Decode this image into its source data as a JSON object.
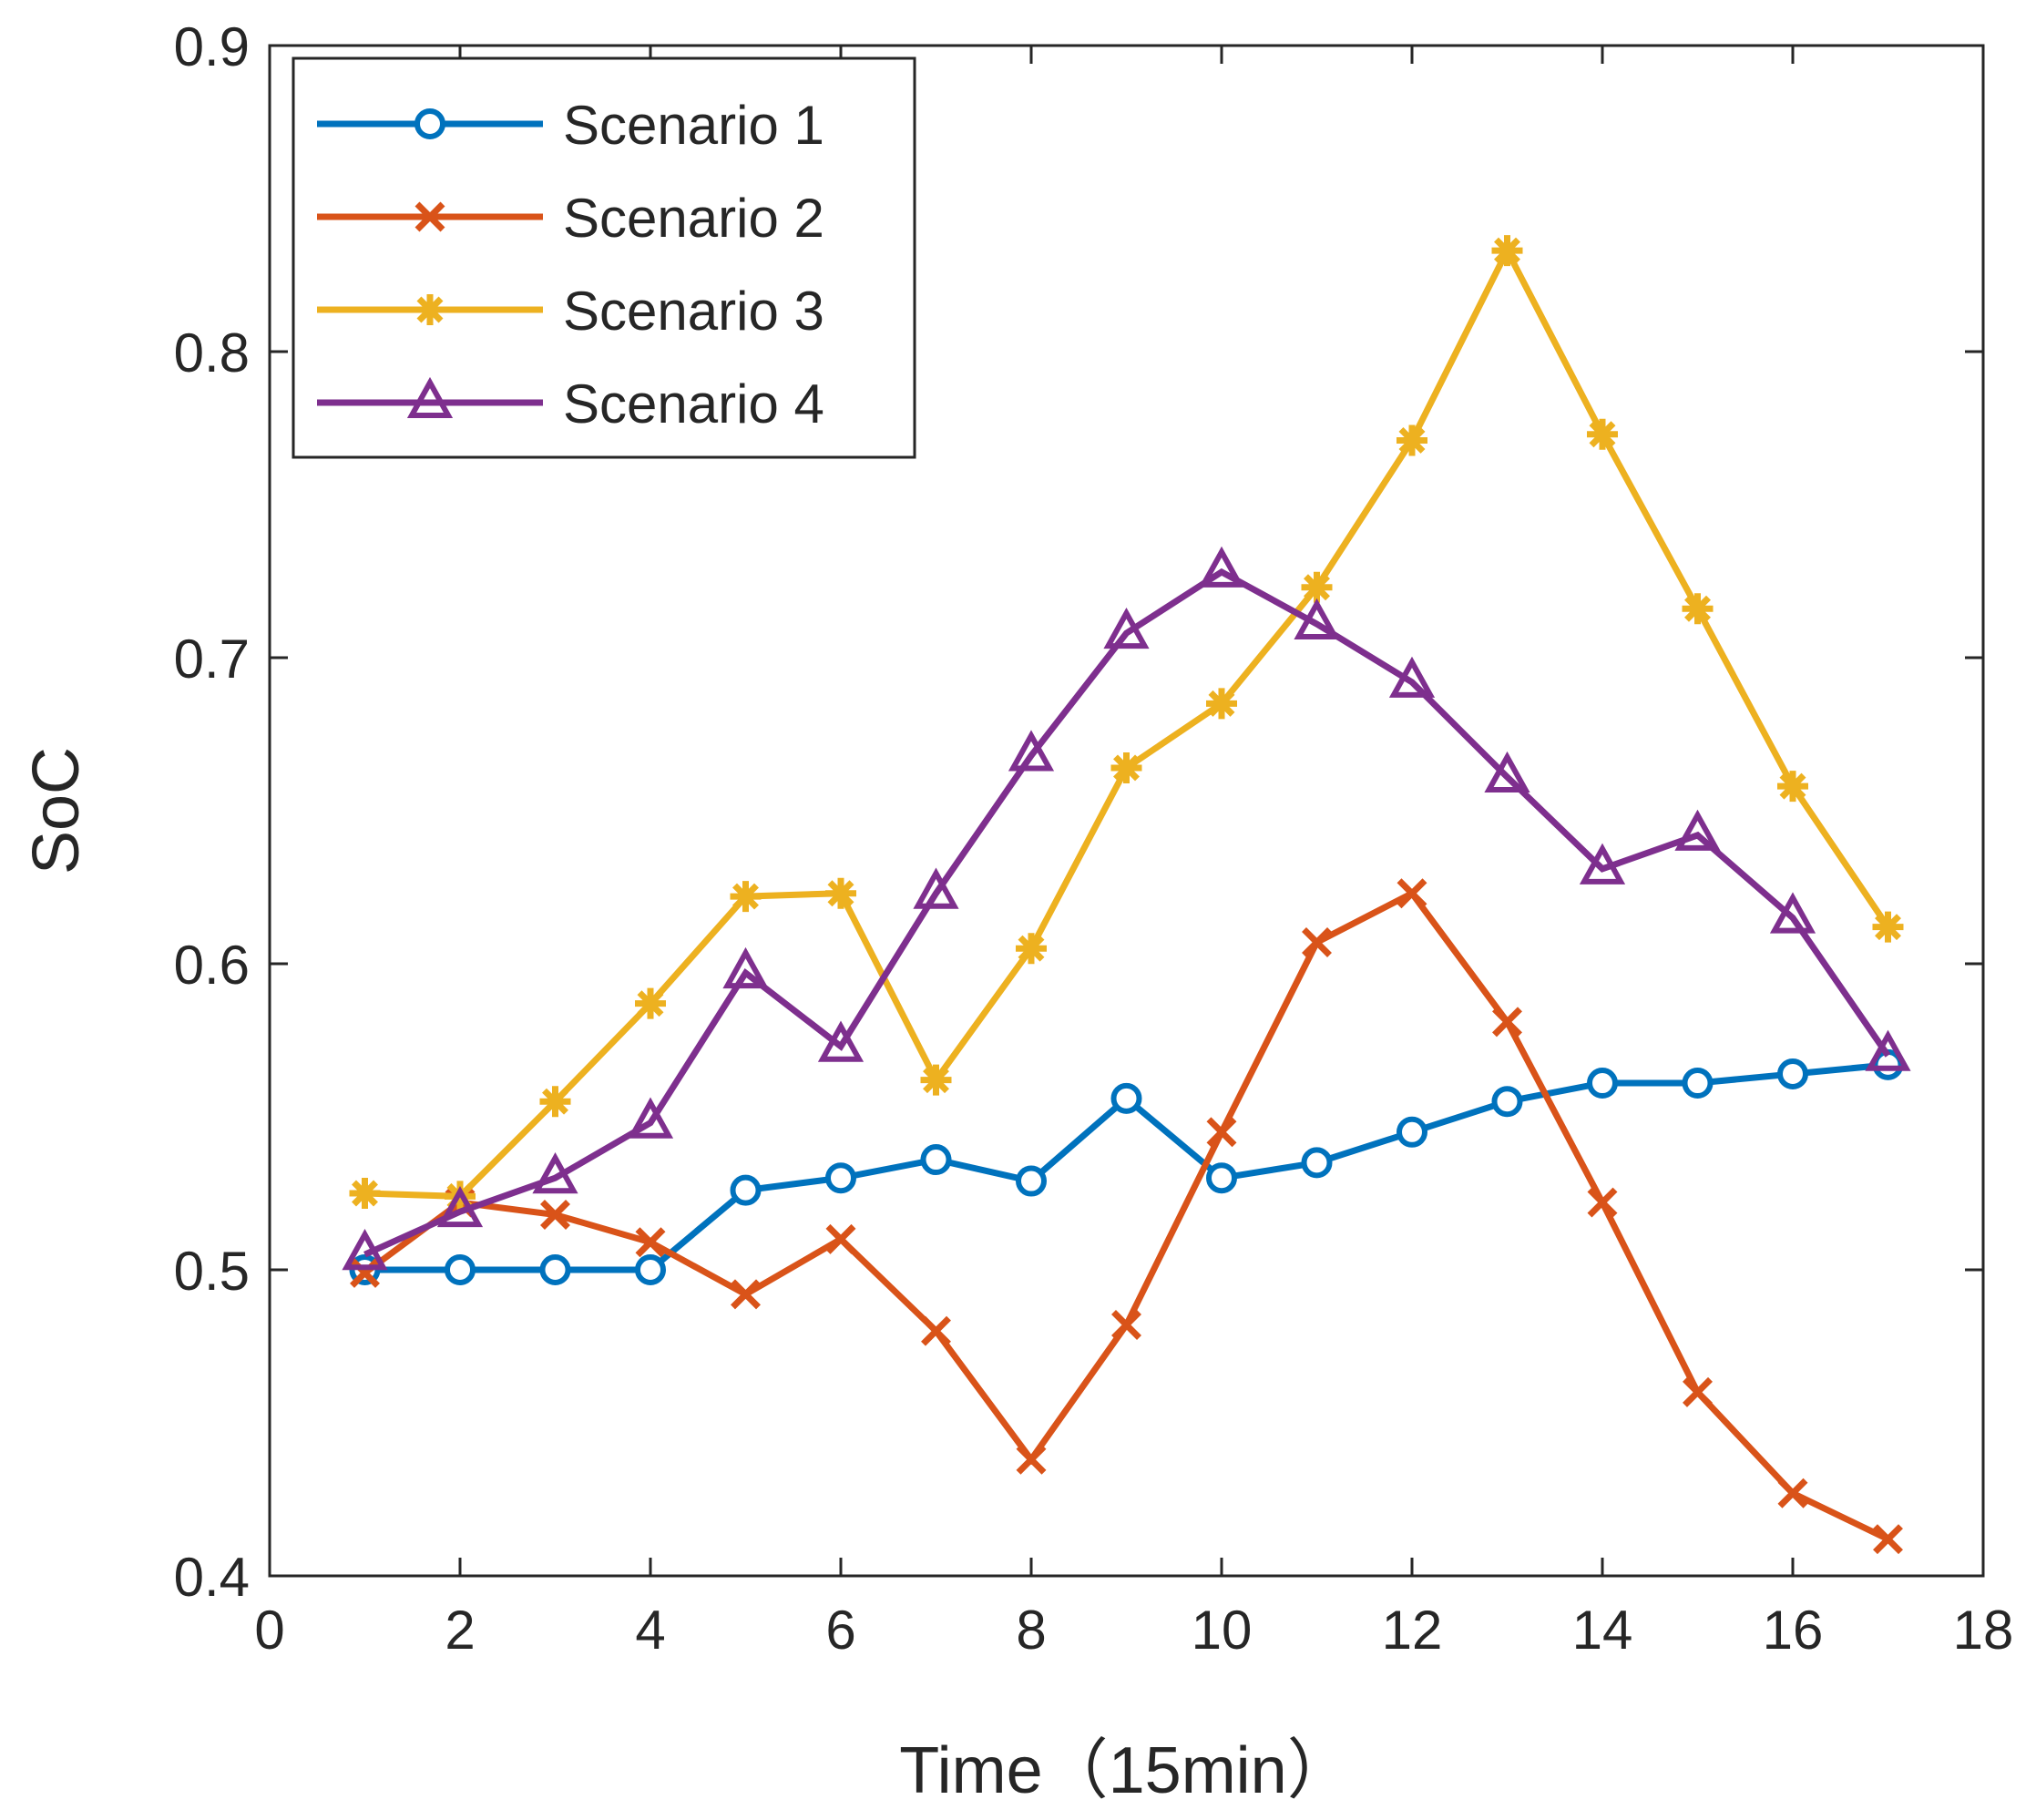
{
  "chart_data": {
    "type": "line",
    "xlabel": "Time（15min）",
    "ylabel": "SoC",
    "xlim": [
      0,
      18
    ],
    "ylim": [
      0.4,
      0.9
    ],
    "xticks": [
      0,
      2,
      4,
      6,
      8,
      10,
      12,
      14,
      16,
      18
    ],
    "xtick_labels": [
      "0",
      "2",
      "4",
      "6",
      "8",
      "10",
      "12",
      "14",
      "16",
      "18"
    ],
    "yticks": [
      0.4,
      0.5,
      0.6,
      0.7,
      0.8,
      0.9
    ],
    "ytick_labels": [
      "0.4",
      "0.5",
      "0.6",
      "0.7",
      "0.8",
      "0.9"
    ],
    "grid": false,
    "legend_position": "top-left",
    "x": [
      1,
      2,
      3,
      4,
      5,
      6,
      7,
      8,
      9,
      10,
      11,
      12,
      13,
      14,
      15,
      16,
      17
    ],
    "series": [
      {
        "name": "Scenario 1",
        "color": "#0072BD",
        "marker": "circle",
        "values": [
          0.5,
          0.5,
          0.5,
          0.5,
          0.526,
          0.53,
          0.536,
          0.529,
          0.556,
          0.53,
          0.535,
          0.545,
          0.555,
          0.561,
          0.561,
          0.564,
          0.567
        ]
      },
      {
        "name": "Scenario 2",
        "color": "#D95319",
        "marker": "x",
        "values": [
          0.499,
          0.522,
          0.518,
          0.509,
          0.492,
          0.51,
          0.48,
          0.438,
          0.482,
          0.545,
          0.607,
          0.623,
          0.581,
          0.522,
          0.46,
          0.427,
          0.412
        ]
      },
      {
        "name": "Scenario 3",
        "color": "#EDB120",
        "marker": "asterisk",
        "values": [
          0.525,
          0.524,
          0.555,
          0.587,
          0.622,
          0.623,
          0.562,
          0.605,
          0.664,
          0.685,
          0.723,
          0.771,
          0.833,
          0.773,
          0.716,
          0.658,
          0.612
        ]
      },
      {
        "name": "Scenario 4",
        "color": "#7E2F8E",
        "marker": "triangle",
        "values": [
          0.505,
          0.519,
          0.53,
          0.548,
          0.597,
          0.573,
          0.623,
          0.668,
          0.708,
          0.728,
          0.711,
          0.692,
          0.661,
          0.631,
          0.642,
          0.615,
          0.57
        ]
      }
    ]
  }
}
